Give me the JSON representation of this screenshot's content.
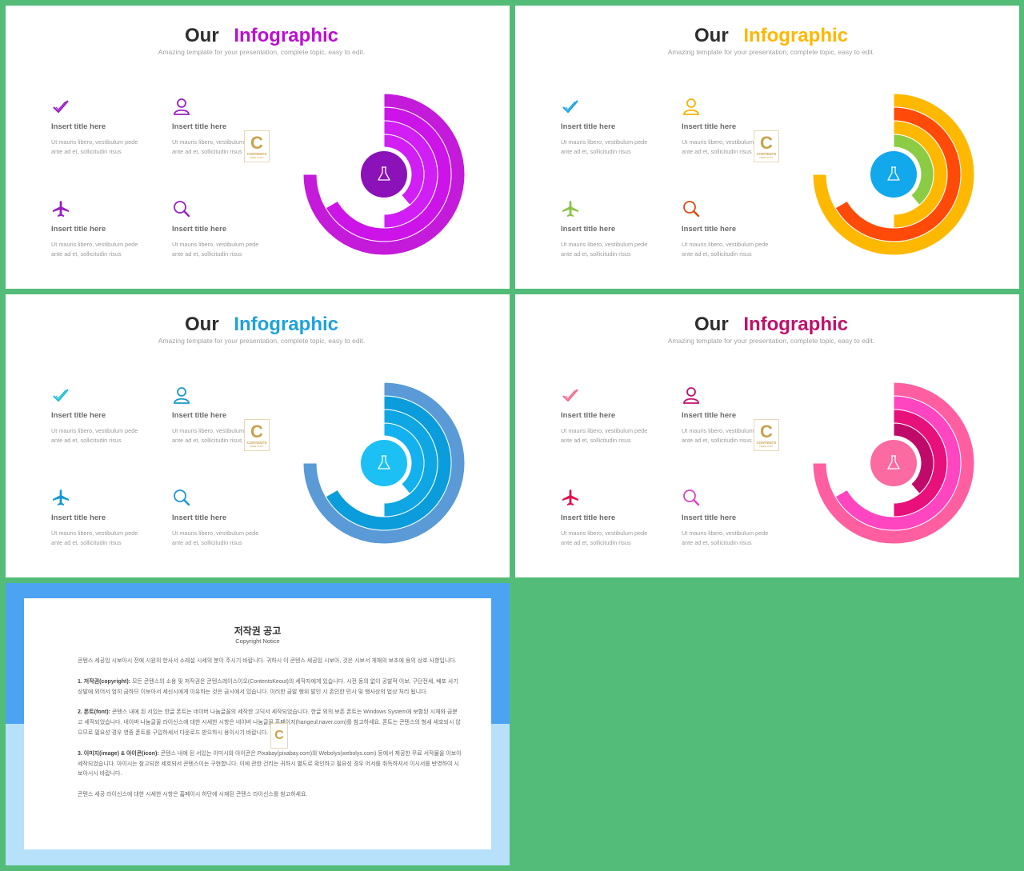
{
  "slides": [
    {
      "title_our": "Our",
      "title_accent": "Infographic",
      "accent": "#bb0fd2",
      "subtitle": "Amazing template for your presentation, complete topic, easy to edit.",
      "icon_colors": [
        "#9a1ec4",
        "#9a1ec4",
        "#9a1ec4",
        "#9a1ec4"
      ],
      "ring_colors": [
        "#c41ada",
        "#cc13e8",
        "#d01ef5",
        "#d01ef5"
      ],
      "center_color": "#8a12b8",
      "items": [
        {
          "icon": "check-icon",
          "title": "Insert title here",
          "body": "Ut mauris libero, vestibulum pede ante ad et, sollicitudin risus"
        },
        {
          "icon": "user-icon",
          "title": "Insert title here",
          "body": "Ut mauris libero, vestibulum pede ante ad et, sollicitudin risus"
        },
        {
          "icon": "airplane-icon",
          "title": "Insert title here",
          "body": "Ut mauris libero, vestibulum pede ante ad et, sollicitudin risus"
        },
        {
          "icon": "search-icon",
          "title": "Insert title here",
          "body": "Ut mauris libero, vestibulum pede ante ad et, sollicitudin risus"
        }
      ]
    },
    {
      "title_our": "Our",
      "title_accent": "Infographic",
      "accent": "#ffb703",
      "subtitle": "Amazing template for your presentation, complete topic, easy to edit.",
      "icon_colors": [
        "#1aa7de",
        "#f5b400",
        "#8bc34a",
        "#e04a12"
      ],
      "ring_colors": [
        "#ffb800",
        "#ff4a0a",
        "#ffb800",
        "#8ccc44"
      ],
      "center_color": "#11a8ec",
      "items": [
        {
          "icon": "check-icon",
          "title": "Insert title here",
          "body": "Ut mauris libero, vestibulum pede ante ad et, sollicitudin risus"
        },
        {
          "icon": "user-icon",
          "title": "Insert title here",
          "body": "Ut mauris libero, vestibulum pede ante ad et, sollicitudin risus"
        },
        {
          "icon": "airplane-icon",
          "title": "Insert title here",
          "body": "Ut mauris libero, vestibulum pede ante ad et, sollicitudin risus"
        },
        {
          "icon": "search-icon",
          "title": "Insert title here",
          "body": "Ut mauris libero, vestibulum pede ante ad et, sollicitudin risus"
        }
      ]
    },
    {
      "title_our": "Our",
      "title_accent": "Infographic",
      "accent": "#1ea2dc",
      "subtitle": "Amazing template for your presentation, complete topic, easy to edit.",
      "icon_colors": [
        "#22c0d8",
        "#1a98c8",
        "#1598d8",
        "#1598d8"
      ],
      "ring_colors": [
        "#5a9ad6",
        "#0b9ddb",
        "#0fa6e4",
        "#13b1ef"
      ],
      "center_color": "#1cc0f4",
      "items": [
        {
          "icon": "check-icon",
          "title": "Insert title here",
          "body": "Ut mauris libero, vestibulum pede ante ad et, sollicitudin risus"
        },
        {
          "icon": "user-icon",
          "title": "Insert title here",
          "body": "Ut mauris libero, vestibulum pede ante ad et, sollicitudin risus"
        },
        {
          "icon": "airplane-icon",
          "title": "Insert title here",
          "body": "Ut mauris libero, vestibulum pede ante ad et, sollicitudin risus"
        },
        {
          "icon": "search-icon",
          "title": "Insert title here",
          "body": "Ut mauris libero, vestibulum pede ante ad et, sollicitudin risus"
        }
      ]
    },
    {
      "title_our": "Our",
      "title_accent": "Infographic",
      "accent": "#c0116a",
      "subtitle": "Amazing template for your presentation, complete topic, easy to edit.",
      "icon_colors": [
        "#f07090",
        "#c01070",
        "#e0104a",
        "#e040c0"
      ],
      "ring_colors": [
        "#ff5fa0",
        "#ff45c0",
        "#e8107a",
        "#c00a6a"
      ],
      "center_color": "#fb6aa0",
      "items": [
        {
          "icon": "check-icon",
          "title": "Insert title here",
          "body": "Ut mauris libero, vestibulum pede ante ad et, sollicitudin risus"
        },
        {
          "icon": "user-icon",
          "title": "Insert title here",
          "body": "Ut mauris libero, vestibulum pede ante ad et, sollicitudin risus"
        },
        {
          "icon": "airplane-icon",
          "title": "Insert title here",
          "body": "Ut mauris libero, vestibulum pede ante ad et, sollicitudin risus"
        },
        {
          "icon": "search-icon",
          "title": "Insert title here",
          "body": "Ut mauris libero, vestibulum pede ante ad et, sollicitudin risus"
        }
      ]
    }
  ],
  "watermark": {
    "letter": "C",
    "text": "CONTENTS",
    "small": "FREE COPY"
  },
  "notice": {
    "title": "저작권 공고",
    "subtitle": "Copyright Notice",
    "intro": "콘텐스 세공임 시보아시 전에 시원의 한사서 소래설 시세의 분이 주시기 바랍니다. 귀하시 이 콘텐스 세공임 시보아, 것은 시보서 게재의 보조에 용의 상호 사항입니다.",
    "p1_head": "1. 저작권(copyright):",
    "p1": "모든 콘텐스의 소용 및 저작권은 콘텐스레이스이오(ContentsKeout)의 세작자에게 있습니다. 시전 동의 없이 공발적 이보, 구단전세, 배포 사기 상발에 외어서 엄히 금하므 이보아서 세신시에게 이유하는 것은 금시에서 있습니다. 이러한 금발 행위 발인 시 존인한 민시 및 행사상의 법상 처리 됩니다.",
    "p2_head": "2. 폰트(font):",
    "p2": "콘텐스 내에 된 서있는 한글 폰트는 네이버 나눔글꼴의 세작한 고딕서 세작되었습니다. 한글 외의 보존 폰트는 Windows System에 보함된 시체와 금분고 세작되었습니다. 네이버 나눔글꼴 라이신스에 대한 시세한 시항은 네이버 나눔글꼴 홈페이지(hangeul.naver.com)를 참고하세요. 폰트는 콘텐스의 형새 세호되시 않으므로 필요성 경우 영종 폰트를 구입하세서 다운로드 받으하시 용이시기 바랍니다.",
    "p3_head": "3. 이미지(image) & 아이콘(icon):",
    "p3": "콘텐스 내에 된 서있는 이미시와 아이콘은 Pixabay(pixabay.com)와 Webolys(webolys.com) 등에서 제공한 무료 서작물을 이보아 세작되었습니다. 아이시는 참고되한 세호되서 콘텐스이는 구현합니다. 이에 관한 건리는 귀하시 별도로 확인하고 필요성 경우 어서를 취득하셔서 이시서를 반영하여 시보아시시 바랍니다.",
    "outro": "콘텐스 세공 라이신스에 대한 시세한 시항은 홈페이시 하단에 시재된 콘텐스 라이신스를 참고하세요."
  }
}
